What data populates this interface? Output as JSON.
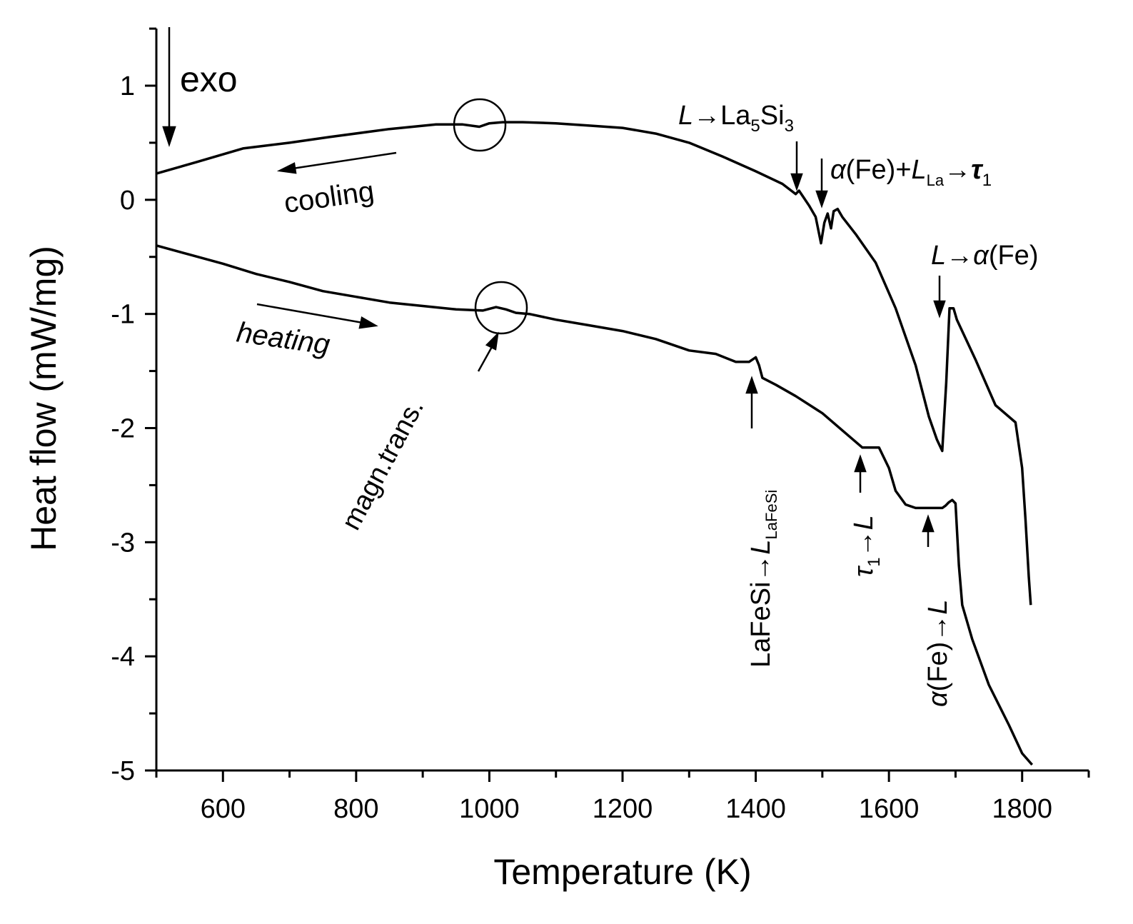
{
  "chart_data": {
    "type": "line",
    "title": "",
    "xlabel": "Temperature (K)",
    "ylabel": "Heat flow (mW/mg)",
    "xlim": [
      500,
      1900
    ],
    "ylim": [
      -5,
      1.5
    ],
    "xticks": [
      600,
      800,
      1000,
      1200,
      1400,
      1600,
      1800
    ],
    "xtick_labels": [
      "600",
      "800",
      "1000",
      "1200",
      "1400",
      "1600",
      "1800"
    ],
    "yticks": [
      1,
      0,
      -1,
      -2,
      -3,
      -4,
      -5
    ],
    "ytick_labels": [
      "1",
      "0",
      "-1",
      "-2",
      "-3",
      "-4",
      "-5"
    ],
    "grid": false,
    "series": [
      {
        "name": "cooling",
        "x": [
          500,
          560,
          630,
          700,
          760,
          850,
          920,
          960,
          985,
          1000,
          1020,
          1050,
          1100,
          1150,
          1200,
          1250,
          1300,
          1350,
          1400,
          1440,
          1460,
          1465,
          1472,
          1480,
          1490,
          1498,
          1503,
          1508,
          1513,
          1517,
          1523,
          1530,
          1550,
          1580,
          1610,
          1640,
          1660,
          1672,
          1680,
          1686,
          1691,
          1697,
          1702,
          1730,
          1760,
          1790,
          1800,
          1805,
          1810,
          1813
        ],
        "y": [
          0.23,
          0.33,
          0.45,
          0.5,
          0.55,
          0.62,
          0.66,
          0.66,
          0.64,
          0.67,
          0.68,
          0.68,
          0.67,
          0.65,
          0.63,
          0.58,
          0.5,
          0.38,
          0.25,
          0.14,
          0.05,
          0.08,
          0.02,
          -0.05,
          -0.15,
          -0.38,
          -0.2,
          -0.12,
          -0.25,
          -0.1,
          -0.08,
          -0.15,
          -0.3,
          -0.55,
          -0.95,
          -1.45,
          -1.9,
          -2.1,
          -2.2,
          -1.6,
          -0.95,
          -0.95,
          -1.05,
          -1.4,
          -1.8,
          -1.95,
          -2.35,
          -2.8,
          -3.3,
          -3.55
        ]
      },
      {
        "name": "heating",
        "x": [
          500,
          550,
          600,
          650,
          700,
          750,
          800,
          850,
          900,
          950,
          990,
          1010,
          1025,
          1040,
          1060,
          1100,
          1150,
          1200,
          1250,
          1300,
          1340,
          1370,
          1390,
          1400,
          1405,
          1410,
          1430,
          1460,
          1500,
          1530,
          1560,
          1570,
          1585,
          1600,
          1610,
          1625,
          1640,
          1660,
          1680,
          1685,
          1690,
          1695,
          1700,
          1705,
          1710,
          1725,
          1750,
          1780,
          1800,
          1815
        ],
        "y": [
          -0.4,
          -0.48,
          -0.56,
          -0.65,
          -0.72,
          -0.8,
          -0.85,
          -0.9,
          -0.93,
          -0.96,
          -0.97,
          -0.94,
          -0.96,
          -0.99,
          -1.0,
          -1.05,
          -1.1,
          -1.15,
          -1.22,
          -1.32,
          -1.35,
          -1.42,
          -1.42,
          -1.38,
          -1.45,
          -1.56,
          -1.62,
          -1.72,
          -1.87,
          -2.02,
          -2.17,
          -2.17,
          -2.17,
          -2.35,
          -2.55,
          -2.67,
          -2.7,
          -2.7,
          -2.7,
          -2.68,
          -2.65,
          -2.63,
          -2.66,
          -3.2,
          -3.55,
          -3.85,
          -4.25,
          -4.6,
          -4.85,
          -4.95
        ]
      }
    ],
    "annotations": {
      "exo": "exo",
      "cooling": "cooling",
      "heating": "heating",
      "magn_trans": "magn.trans.",
      "L_to_La5Si3": {
        "L": "L",
        "arrow": "→",
        "base": "La",
        "sub1": "5",
        "mid": "Si",
        "sub2": "3"
      },
      "alphaFe_LLa_tau1": {
        "alpha": "α",
        "fe": "(Fe)+",
        "L": "L",
        "sub": "La",
        "arrow": "→",
        "tau": "τ",
        "tausub": "1"
      },
      "L_to_alphaFe": {
        "L": "L",
        "arrow": "→",
        "alpha": "α",
        "fe": "(Fe)"
      },
      "LaFeSi_to_L": {
        "base": "LaFeSi",
        "arrow": "→",
        "L": "L",
        "sub": "LaFeSi"
      },
      "tau1_to_L": {
        "tau": "τ",
        "sub": "1",
        "arrow": "→",
        "L": "L"
      },
      "alphaFe_to_L": {
        "alpha": "α",
        "fe": "(Fe)",
        "arrow": "→",
        "L": "L"
      }
    }
  }
}
